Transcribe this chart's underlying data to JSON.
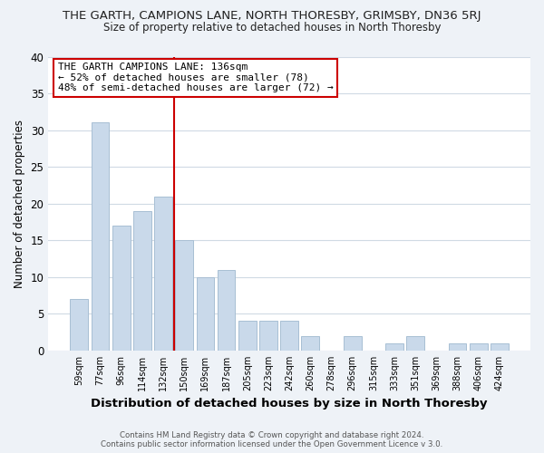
{
  "title_line1": "THE GARTH, CAMPIONS LANE, NORTH THORESBY, GRIMSBY, DN36 5RJ",
  "title_line2": "Size of property relative to detached houses in North Thoresby",
  "xlabel": "Distribution of detached houses by size in North Thoresby",
  "ylabel": "Number of detached properties",
  "bar_labels": [
    "59sqm",
    "77sqm",
    "96sqm",
    "114sqm",
    "132sqm",
    "150sqm",
    "169sqm",
    "187sqm",
    "205sqm",
    "223sqm",
    "242sqm",
    "260sqm",
    "278sqm",
    "296sqm",
    "315sqm",
    "333sqm",
    "351sqm",
    "369sqm",
    "388sqm",
    "406sqm",
    "424sqm"
  ],
  "bar_heights": [
    7,
    31,
    17,
    19,
    21,
    15,
    10,
    11,
    4,
    4,
    4,
    2,
    0,
    2,
    0,
    1,
    2,
    0,
    1,
    1,
    1
  ],
  "bar_color": "#c9d9ea",
  "bar_edge_color": "#a8bfd4",
  "ylim": [
    0,
    40
  ],
  "yticks": [
    0,
    5,
    10,
    15,
    20,
    25,
    30,
    35,
    40
  ],
  "annotation_title": "THE GARTH CAMPIONS LANE: 136sqm",
  "annotation_line1": "← 52% of detached houses are smaller (78)",
  "annotation_line2": "48% of semi-detached houses are larger (72) →",
  "footer_line1": "Contains HM Land Registry data © Crown copyright and database right 2024.",
  "footer_line2": "Contains public sector information licensed under the Open Government Licence v 3.0.",
  "background_color": "#eef2f7",
  "plot_background_color": "#ffffff",
  "grid_color": "#d0dae4",
  "red_line_color": "#cc0000",
  "annotation_box_color": "#cc0000"
}
